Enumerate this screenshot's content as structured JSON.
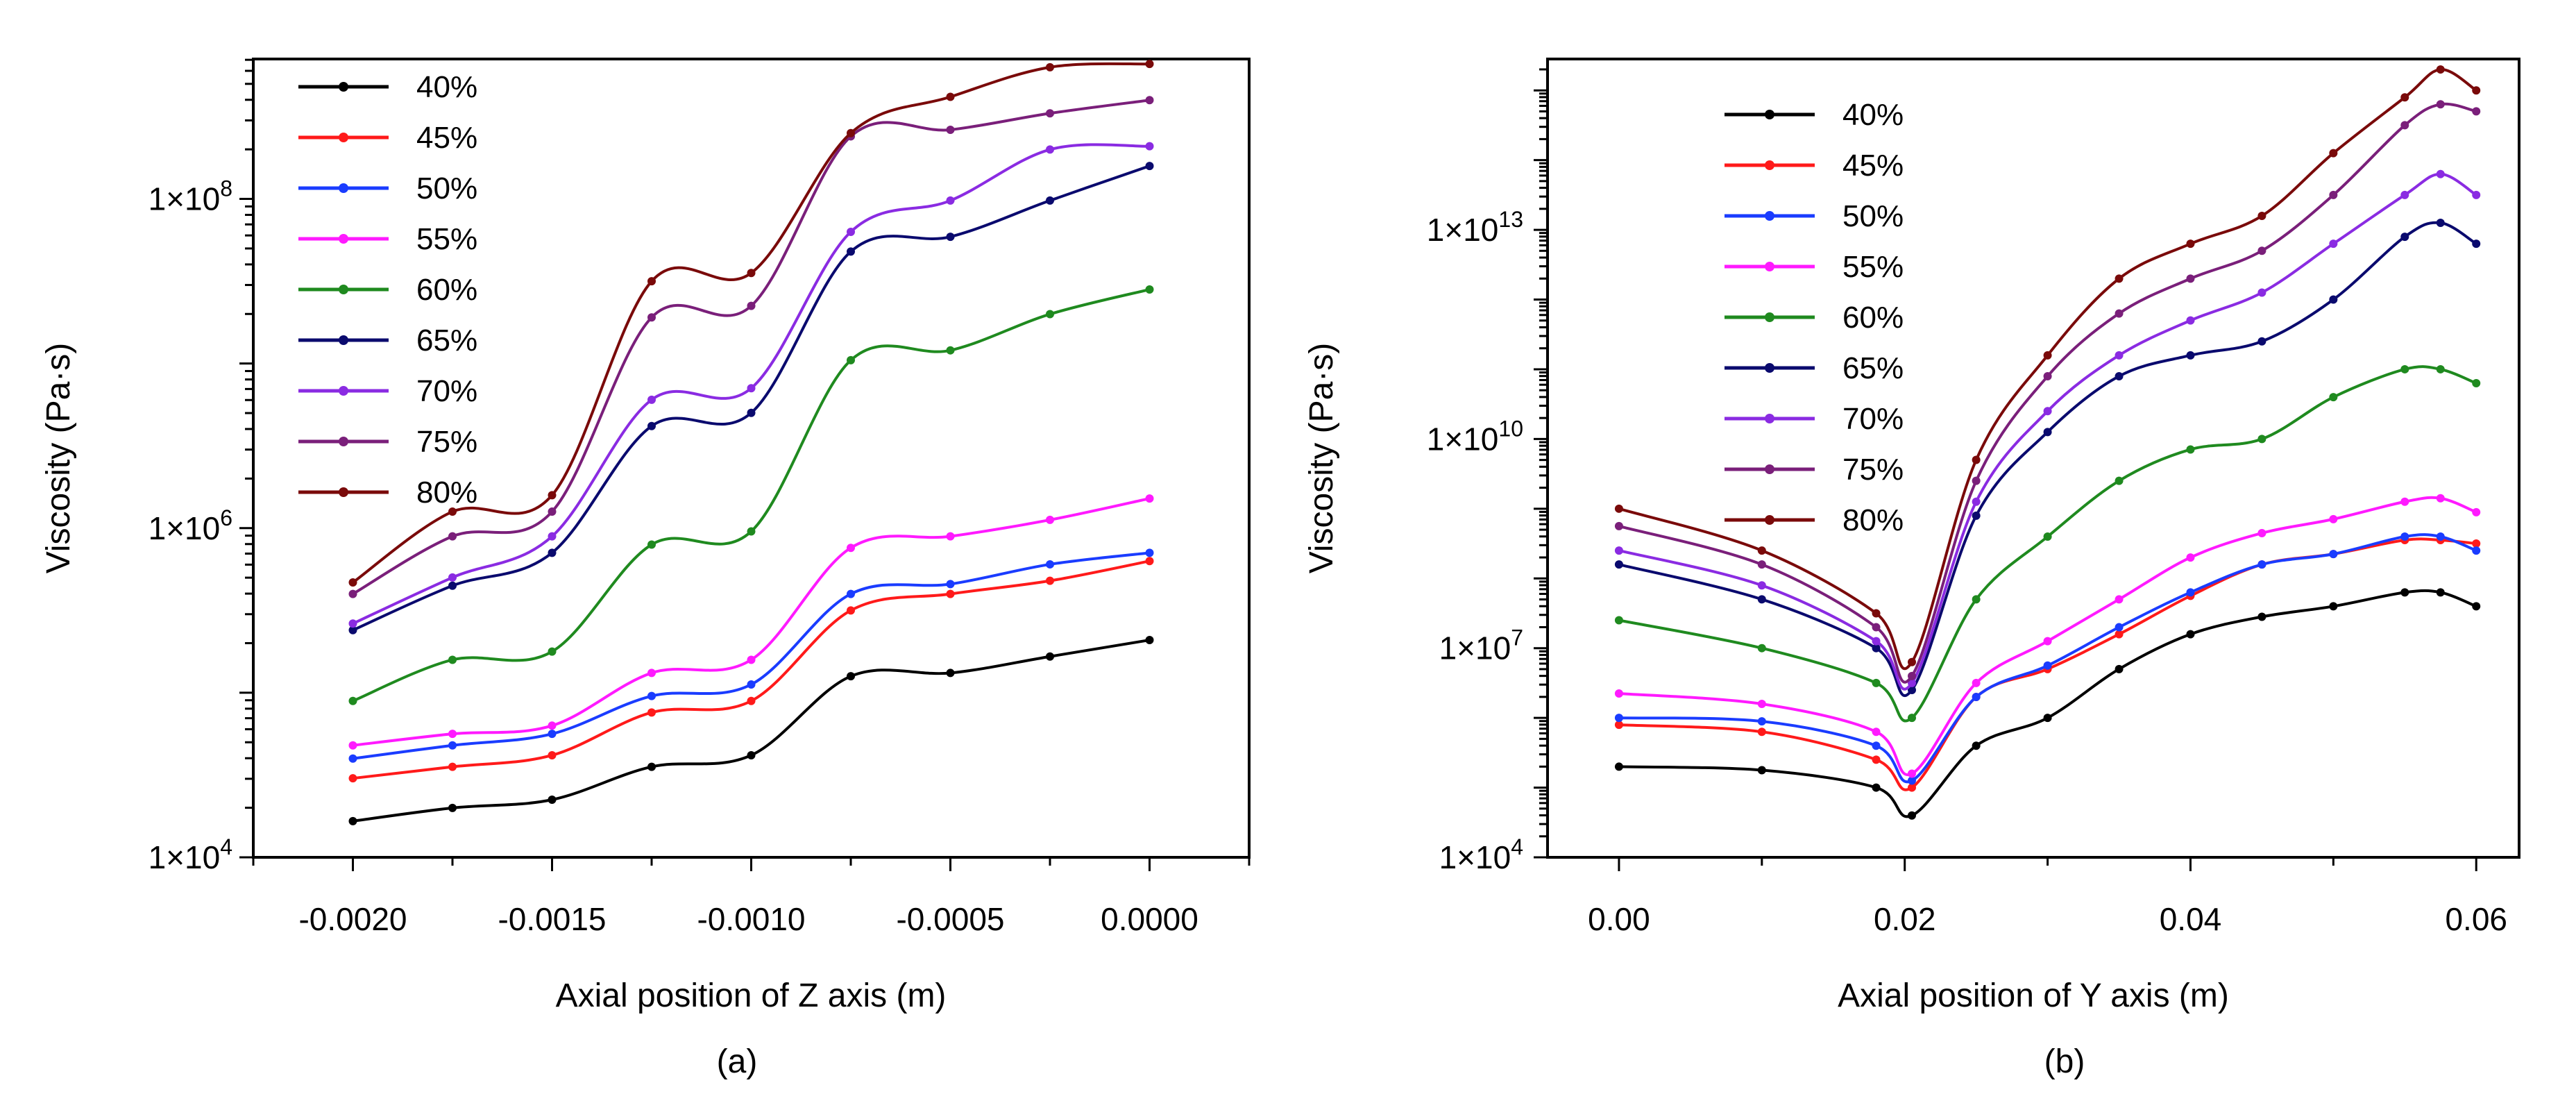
{
  "colors": {
    "40%": "#000000",
    "45%": "#ff1a1a",
    "50%": "#1a3cff",
    "55%": "#ff1aff",
    "60%": "#1f8a1f",
    "65%": "#0a0a6e",
    "70%": "#8a2be2",
    "75%": "#7a1f7a",
    "80%": "#7a0a0a"
  },
  "chart_data": [
    {
      "type": "line",
      "panel_label": "(a)",
      "xlabel": "Axial position of Z axis (m)",
      "ylabel": "Viscosity (Pa·s)",
      "yscale": "log",
      "xlim": [
        -0.00225,
        0.00025
      ],
      "ylim_log10": [
        4,
        8.85
      ],
      "x_ticks": [
        -0.002,
        -0.0015,
        -0.001,
        -0.0005,
        0.0
      ],
      "x_tick_labels": [
        "-0.0020",
        "-0.0015",
        "-0.0010",
        "-0.0005",
        "0.0000"
      ],
      "y_tick_labels": [
        {
          "mantissa": "1×10",
          "exp": "4",
          "log": 4
        },
        {
          "mantissa": "1×10",
          "exp": "6",
          "log": 6
        },
        {
          "mantissa": "1×10",
          "exp": "8",
          "log": 8
        }
      ],
      "x": [
        -0.002,
        -0.00175,
        -0.0015,
        -0.00125,
        -0.001,
        -0.00075,
        -0.0005,
        -0.00025,
        0.0
      ],
      "series": [
        {
          "name": "40%",
          "values_log10": [
            4.22,
            4.3,
            4.35,
            4.55,
            4.62,
            5.1,
            5.12,
            5.22,
            5.32
          ]
        },
        {
          "name": "45%",
          "values_log10": [
            4.48,
            4.55,
            4.62,
            4.88,
            4.95,
            5.5,
            5.6,
            5.68,
            5.8
          ]
        },
        {
          "name": "50%",
          "values_log10": [
            4.6,
            4.68,
            4.75,
            4.98,
            5.05,
            5.6,
            5.66,
            5.78,
            5.85
          ]
        },
        {
          "name": "55%",
          "values_log10": [
            4.68,
            4.75,
            4.8,
            5.12,
            5.2,
            5.88,
            5.95,
            6.05,
            6.18
          ]
        },
        {
          "name": "60%",
          "values_log10": [
            4.95,
            5.2,
            5.25,
            5.9,
            5.98,
            7.02,
            7.08,
            7.3,
            7.45
          ]
        },
        {
          "name": "65%",
          "values_log10": [
            5.38,
            5.65,
            5.85,
            6.62,
            6.7,
            7.68,
            7.77,
            7.99,
            8.2
          ]
        },
        {
          "name": "70%",
          "values_log10": [
            5.42,
            5.7,
            5.95,
            6.78,
            6.85,
            7.8,
            7.99,
            8.3,
            8.32
          ]
        },
        {
          "name": "75%",
          "values_log10": [
            5.6,
            5.95,
            6.1,
            7.28,
            7.35,
            8.38,
            8.42,
            8.52,
            8.6
          ]
        },
        {
          "name": "80%",
          "values_log10": [
            5.67,
            6.1,
            6.2,
            7.5,
            7.55,
            8.4,
            8.62,
            8.8,
            8.82
          ]
        }
      ]
    },
    {
      "type": "line",
      "panel_label": "(b)",
      "xlabel": "Axial position of Y axis (m)",
      "ylabel": "Viscosity (Pa·s)",
      "yscale": "log",
      "xlim": [
        -0.005,
        0.063
      ],
      "ylim_log10": [
        4,
        15.45
      ],
      "x_ticks": [
        0.0,
        0.02,
        0.04,
        0.06
      ],
      "x_tick_labels": [
        "0.00",
        "0.02",
        "0.04",
        "0.06"
      ],
      "y_tick_labels": [
        {
          "mantissa": "1×10",
          "exp": "4",
          "log": 4
        },
        {
          "mantissa": "1×10",
          "exp": "7",
          "log": 7
        },
        {
          "mantissa": "1×10",
          "exp": "10",
          "log": 10
        },
        {
          "mantissa": "1×10",
          "exp": "13",
          "log": 13
        }
      ],
      "x": [
        0.0,
        0.01,
        0.018,
        0.0205,
        0.025,
        0.03,
        0.035,
        0.04,
        0.045,
        0.05,
        0.055,
        0.0575,
        0.06
      ],
      "series": [
        {
          "name": "40%",
          "values_log10": [
            5.3,
            5.25,
            5.0,
            4.6,
            5.6,
            6.0,
            6.7,
            7.2,
            7.45,
            7.6,
            7.8,
            7.8,
            7.6
          ]
        },
        {
          "name": "45%",
          "values_log10": [
            5.9,
            5.8,
            5.4,
            5.0,
            6.3,
            6.7,
            7.2,
            7.75,
            8.2,
            8.35,
            8.55,
            8.55,
            8.5
          ]
        },
        {
          "name": "50%",
          "values_log10": [
            6.0,
            5.95,
            5.6,
            5.1,
            6.3,
            6.75,
            7.3,
            7.8,
            8.2,
            8.35,
            8.6,
            8.6,
            8.4
          ]
        },
        {
          "name": "55%",
          "values_log10": [
            6.35,
            6.2,
            5.8,
            5.2,
            6.5,
            7.1,
            7.7,
            8.3,
            8.65,
            8.85,
            9.1,
            9.15,
            8.95
          ]
        },
        {
          "name": "60%",
          "values_log10": [
            7.4,
            7.0,
            6.5,
            6.0,
            7.7,
            8.6,
            9.4,
            9.85,
            10.0,
            10.6,
            11.0,
            11.0,
            10.8
          ]
        },
        {
          "name": "65%",
          "values_log10": [
            8.2,
            7.7,
            7.0,
            6.4,
            8.9,
            10.1,
            10.9,
            11.2,
            11.4,
            12.0,
            12.9,
            13.1,
            12.8
          ]
        },
        {
          "name": "70%",
          "values_log10": [
            8.4,
            7.9,
            7.1,
            6.5,
            9.1,
            10.4,
            11.2,
            11.7,
            12.1,
            12.8,
            13.5,
            13.8,
            13.5
          ]
        },
        {
          "name": "75%",
          "values_log10": [
            8.75,
            8.2,
            7.3,
            6.6,
            9.4,
            10.9,
            11.8,
            12.3,
            12.7,
            13.5,
            14.5,
            14.8,
            14.7
          ]
        },
        {
          "name": "80%",
          "values_log10": [
            9.0,
            8.4,
            7.5,
            6.8,
            9.7,
            11.2,
            12.3,
            12.8,
            13.2,
            14.1,
            14.9,
            15.3,
            15.0
          ]
        }
      ]
    }
  ]
}
